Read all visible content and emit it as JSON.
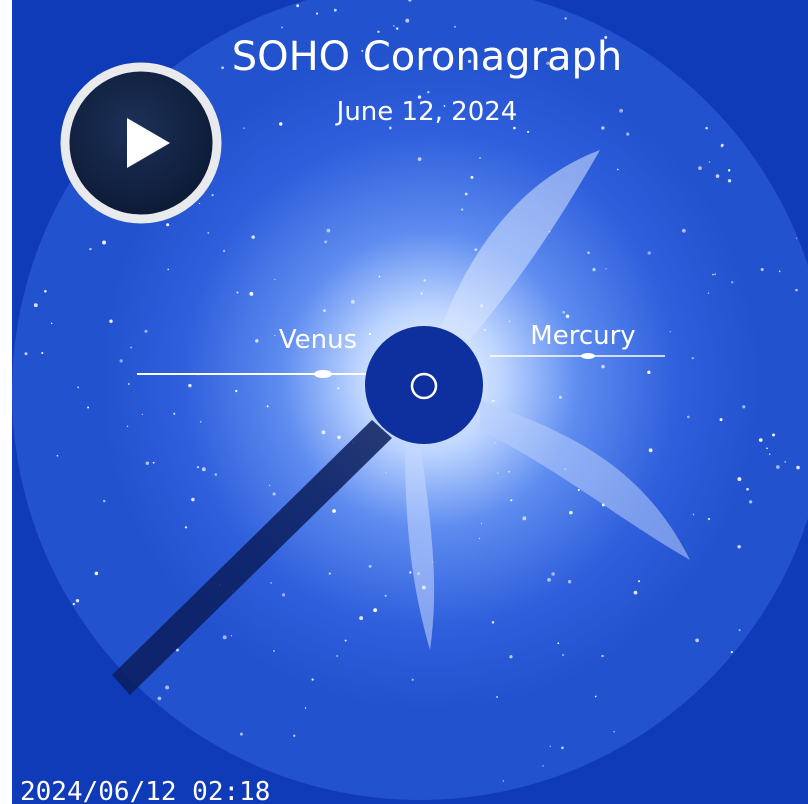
{
  "title": "SOHO Coronagraph",
  "date": "June 12, 2024",
  "labels": {
    "venus": "Venus",
    "mercury": "Mercury"
  },
  "timestamp": "2024/06/12 02:18"
}
